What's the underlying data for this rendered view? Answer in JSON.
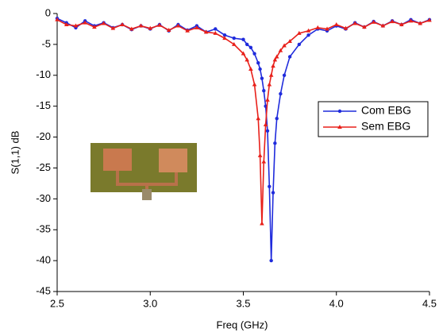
{
  "chart_data": {
    "type": "line",
    "x_label": "Freq (GHz)",
    "y_label": "S(1,1) dB",
    "x": [
      2.5,
      2.55,
      2.6,
      2.65,
      2.7,
      2.75,
      2.8,
      2.85,
      2.9,
      2.95,
      3.0,
      3.05,
      3.1,
      3.15,
      3.2,
      3.25,
      3.3,
      3.35,
      3.4,
      3.45,
      3.5,
      3.52,
      3.54,
      3.56,
      3.58,
      3.59,
      3.6,
      3.61,
      3.62,
      3.63,
      3.64,
      3.65,
      3.66,
      3.67,
      3.68,
      3.7,
      3.72,
      3.75,
      3.8,
      3.85,
      3.9,
      3.95,
      4.0,
      4.05,
      4.1,
      4.15,
      4.2,
      4.25,
      4.3,
      4.35,
      4.4,
      4.45,
      4.5
    ],
    "series": [
      {
        "name": "Com EBG",
        "color": "#1f2bdc",
        "marker": "circle",
        "values": [
          -0.8,
          -1.5,
          -2.3,
          -1.2,
          -2.0,
          -1.5,
          -2.3,
          -1.8,
          -2.6,
          -2.0,
          -2.5,
          -1.8,
          -2.8,
          -1.8,
          -2.7,
          -2.0,
          -3.0,
          -2.5,
          -3.5,
          -4.0,
          -4.2,
          -5.0,
          -5.5,
          -6.5,
          -8,
          -9,
          -10.5,
          -12.5,
          -15,
          -19,
          -28,
          -40,
          -29,
          -21,
          -17,
          -13,
          -10,
          -7,
          -5,
          -3.5,
          -2.5,
          -2.8,
          -2.0,
          -2.5,
          -1.5,
          -2.2,
          -1.3,
          -2.0,
          -1.2,
          -1.8,
          -1.0,
          -1.6,
          -1.0
        ]
      },
      {
        "name": "Sem EBG",
        "color": "#e8201a",
        "marker": "triangle",
        "values": [
          -1.0,
          -1.8,
          -2.0,
          -1.5,
          -2.2,
          -1.6,
          -2.4,
          -1.8,
          -2.5,
          -2.0,
          -2.4,
          -1.9,
          -2.7,
          -2.0,
          -2.8,
          -2.3,
          -3.0,
          -3.2,
          -4.0,
          -5.0,
          -6.5,
          -7.5,
          -9,
          -11.5,
          -17,
          -23,
          -34,
          -24,
          -18,
          -14,
          -11.5,
          -10,
          -8.5,
          -7.5,
          -7,
          -6,
          -5.2,
          -4.5,
          -3.2,
          -2.8,
          -2.3,
          -2.5,
          -1.8,
          -2.4,
          -1.6,
          -2.2,
          -1.4,
          -2.0,
          -1.3,
          -1.8,
          -1.2,
          -1.6,
          -1.1
        ]
      }
    ],
    "xlim": [
      2.5,
      4.5
    ],
    "xticks": [
      2.5,
      {
        "value": 3,
        "label": "3.0"
      },
      3.5,
      {
        "value": 4,
        "label": "4.0"
      },
      4.5
    ],
    "ylim": [
      -45,
      0
    ],
    "yticks": [
      0,
      -5,
      -10,
      -15,
      -20,
      -25,
      -30,
      -35,
      -40,
      -45
    ],
    "legend": "right"
  }
}
